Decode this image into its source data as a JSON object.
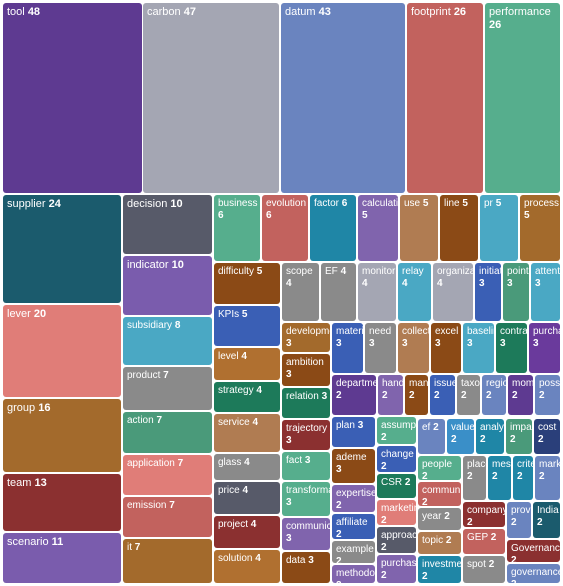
{
  "chart_data": {
    "type": "treemap",
    "title": "",
    "items": [
      {
        "word": "tool",
        "count": 48,
        "color": "#5e3a91"
      },
      {
        "word": "carbon",
        "count": 47,
        "color": "#a4a6b3"
      },
      {
        "word": "datum",
        "count": 43,
        "color": "#6a84bf"
      },
      {
        "word": "footprint",
        "count": 26,
        "color": "#c2625e"
      },
      {
        "word": "performance",
        "count": 26,
        "color": "#56ae8d"
      },
      {
        "word": "supplier",
        "count": 24,
        "color": "#1b5b6d"
      },
      {
        "word": "decision",
        "count": 10,
        "color": "#575a69"
      },
      {
        "word": "business",
        "count": 6,
        "color": "#56ae8d"
      },
      {
        "word": "evolution",
        "count": 6,
        "color": "#c2625e"
      },
      {
        "word": "factor",
        "count": 6,
        "color": "#1f86a6"
      },
      {
        "word": "calculation",
        "count": 5,
        "color": "#8064ad"
      },
      {
        "word": "use",
        "count": 5,
        "color": "#b07c52"
      },
      {
        "word": "line",
        "count": 5,
        "color": "#8b4a16"
      },
      {
        "word": "pr",
        "count": 5,
        "color": "#4aa8c4"
      },
      {
        "word": "process",
        "count": 5,
        "color": "#a36a2c"
      },
      {
        "word": "indicator",
        "count": 10,
        "color": "#7a5cad"
      },
      {
        "word": "difficulty",
        "count": 5,
        "color": "#8b4a16"
      },
      {
        "word": "scope",
        "count": 4,
        "color": "#8a8a8a"
      },
      {
        "word": "EF",
        "count": 4,
        "color": "#8a8a8a"
      },
      {
        "word": "monitoring",
        "count": 4,
        "color": "#a4a6b3"
      },
      {
        "word": "relay",
        "count": 4,
        "color": "#4aa8c4"
      },
      {
        "word": "organization",
        "count": 4,
        "color": "#a4a6b3"
      },
      {
        "word": "initiative",
        "count": 3,
        "color": "#3a5fb5"
      },
      {
        "word": "point",
        "count": 3,
        "color": "#4a9a7a"
      },
      {
        "word": "attention",
        "count": 3,
        "color": "#4aa8c4"
      },
      {
        "word": "lever",
        "count": 20,
        "color": "#e07d78"
      },
      {
        "word": "subsidiary",
        "count": 8,
        "color": "#4aa8c4"
      },
      {
        "word": "KPIs",
        "count": 5,
        "color": "#3a5fb5"
      },
      {
        "word": "development",
        "count": 3,
        "color": "#a36a2c"
      },
      {
        "word": "material",
        "count": 3,
        "color": "#3a5fb5"
      },
      {
        "word": "need",
        "count": 3,
        "color": "#8a8a8a"
      },
      {
        "word": "collection",
        "count": 3,
        "color": "#b07c52"
      },
      {
        "word": "excel",
        "count": 3,
        "color": "#8b4a16"
      },
      {
        "word": "baseline",
        "count": 3,
        "color": "#4aa8c4"
      },
      {
        "word": "contract",
        "count": 3,
        "color": "#1d7a5a"
      },
      {
        "word": "purchase",
        "count": 3,
        "color": "#6a3a9c"
      },
      {
        "word": "product",
        "count": 7,
        "color": "#8a8a8a"
      },
      {
        "word": "level",
        "count": 4,
        "color": "#b07030"
      },
      {
        "word": "ambition",
        "count": 3,
        "color": "#8b4a16"
      },
      {
        "word": "department",
        "count": 2,
        "color": "#5e3a91"
      },
      {
        "word": "hand",
        "count": 2,
        "color": "#8064ad"
      },
      {
        "word": "management",
        "count": 2,
        "color": "#8b4a16"
      },
      {
        "word": "issue",
        "count": 2,
        "color": "#3a5fb5"
      },
      {
        "word": "taxonomy",
        "count": 2,
        "color": "#8a8a8a"
      },
      {
        "word": "region",
        "count": 2,
        "color": "#6a84bf"
      },
      {
        "word": "moment",
        "count": 2,
        "color": "#5e3a91"
      },
      {
        "word": "possibility",
        "count": 2,
        "color": "#6a84bf"
      },
      {
        "word": "group",
        "count": 16,
        "color": "#a36a2c"
      },
      {
        "word": "action",
        "count": 7,
        "color": "#4a9a7a"
      },
      {
        "word": "strategy",
        "count": 4,
        "color": "#1d7a5a"
      },
      {
        "word": "relation",
        "count": 3,
        "color": "#1d7a5a"
      },
      {
        "word": "plan",
        "count": 3,
        "color": "#3a5fb5"
      },
      {
        "word": "assumption",
        "count": 2,
        "color": "#56ae8d"
      },
      {
        "word": "ef",
        "count": 2,
        "color": "#6a84bf"
      },
      {
        "word": "value",
        "count": 2,
        "color": "#3a8fc8"
      },
      {
        "word": "analysis",
        "count": 2,
        "color": "#1f86a6"
      },
      {
        "word": "impact",
        "count": 2,
        "color": "#4a9a7a"
      },
      {
        "word": "cost",
        "count": 2,
        "color": "#2a3f7a"
      },
      {
        "word": "service",
        "count": 4,
        "color": "#b07c52"
      },
      {
        "word": "trajectory",
        "count": 3,
        "color": "#8b3030"
      },
      {
        "word": "change",
        "count": 2,
        "color": "#3a5fb5"
      },
      {
        "word": "application",
        "count": 7,
        "color": "#e07d78"
      },
      {
        "word": "glass",
        "count": 4,
        "color": "#8a8a8a"
      },
      {
        "word": "fact",
        "count": 3,
        "color": "#56ae8d"
      },
      {
        "word": "ademe",
        "count": 3,
        "color": "#8b4a16"
      },
      {
        "word": "people",
        "count": 2,
        "color": "#56ae8d"
      },
      {
        "word": "place",
        "count": 2,
        "color": "#8a8a8a"
      },
      {
        "word": "message",
        "count": 2,
        "color": "#1f86a6"
      },
      {
        "word": "criteria",
        "count": 2,
        "color": "#1f86a6"
      },
      {
        "word": "market",
        "count": 2,
        "color": "#6a84bf"
      },
      {
        "word": "team",
        "count": 13,
        "color": "#8b3030"
      },
      {
        "word": "emission",
        "count": 7,
        "color": "#c2625e"
      },
      {
        "word": "price",
        "count": 4,
        "color": "#575a69"
      },
      {
        "word": "transformation",
        "count": 3,
        "color": "#56ae8d"
      },
      {
        "word": "expertise",
        "count": 2,
        "color": "#8064ad"
      },
      {
        "word": "CSR",
        "count": 2,
        "color": "#1d7a5a"
      },
      {
        "word": "community",
        "count": 2,
        "color": "#c2625e"
      },
      {
        "word": "marketing",
        "count": 2,
        "color": "#e07d78"
      },
      {
        "word": "year",
        "count": 2,
        "color": "#8a8a8a"
      },
      {
        "word": "company",
        "count": 2,
        "color": "#8b3030"
      },
      {
        "word": "provider",
        "count": 2,
        "color": "#6a84bf"
      },
      {
        "word": "India",
        "count": 2,
        "color": "#1b5b6d"
      },
      {
        "word": "project",
        "count": 4,
        "color": "#8b3030"
      },
      {
        "word": "communication",
        "count": 3,
        "color": "#8064ad"
      },
      {
        "word": "affiliate",
        "count": 2,
        "color": "#3a5fb5"
      },
      {
        "word": "approach",
        "count": 2,
        "color": "#575a69"
      },
      {
        "word": "topic",
        "count": 2,
        "color": "#b07c52"
      },
      {
        "word": "GEP",
        "count": 2,
        "color": "#c2625e"
      },
      {
        "word": "Governance",
        "count": 2,
        "color": "#8b3030"
      },
      {
        "word": "scenario",
        "count": 11,
        "color": "#7a5cad"
      },
      {
        "word": "it",
        "count": 7,
        "color": "#a36a2c"
      },
      {
        "word": "solution",
        "count": 4,
        "color": "#b07030"
      },
      {
        "word": "data",
        "count": 3,
        "color": "#8b4a16"
      },
      {
        "word": "example",
        "count": 2,
        "color": "#8a8a8a"
      },
      {
        "word": "methodology",
        "count": 2,
        "color": "#8064ad"
      },
      {
        "word": "purchasing",
        "count": 2,
        "color": "#8064ad"
      },
      {
        "word": "investment",
        "count": 2,
        "color": "#1f86a6"
      },
      {
        "word": "spot",
        "count": 2,
        "color": "#8a8a8a"
      },
      {
        "word": "governance",
        "count": 2,
        "color": "#6a84bf"
      }
    ]
  }
}
